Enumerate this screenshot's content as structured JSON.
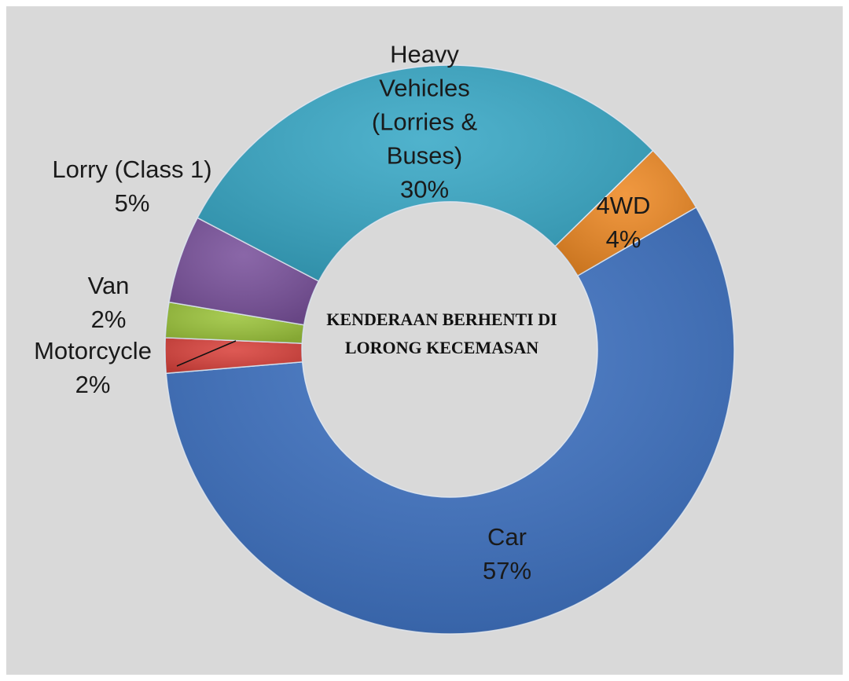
{
  "chart_data": {
    "type": "donut",
    "title": "KENDERAAN BERHENTI DI LORONG KECEMASAN",
    "categories": [
      "Car",
      "Motorcycle",
      "Van",
      "Lorry (Class 1)",
      "Heavy Vehicles (Lorries & Buses)",
      "4WD"
    ],
    "values": [
      57,
      2,
      2,
      5,
      30,
      4
    ],
    "value_labels": [
      "57%",
      "2%",
      "2%",
      "5%",
      "30%",
      "4%"
    ],
    "colors": [
      "#3e72c2",
      "#d9433d",
      "#9cc43c",
      "#7a529c",
      "#38a8c6",
      "#ee8a26"
    ]
  }
}
